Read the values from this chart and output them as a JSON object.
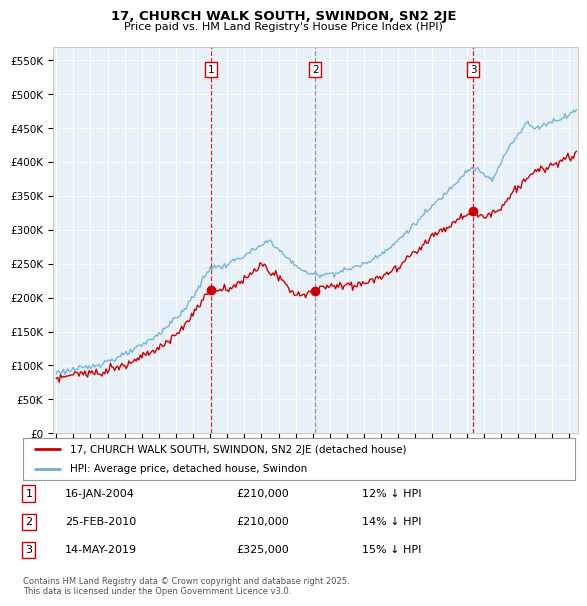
{
  "title": "17, CHURCH WALK SOUTH, SWINDON, SN2 2JE",
  "subtitle": "Price paid vs. HM Land Registry's House Price Index (HPI)",
  "ylabel_ticks": [
    "£0",
    "£50K",
    "£100K",
    "£150K",
    "£200K",
    "£250K",
    "£300K",
    "£350K",
    "£400K",
    "£450K",
    "£500K",
    "£550K"
  ],
  "ytick_values": [
    0,
    50000,
    100000,
    150000,
    200000,
    250000,
    300000,
    350000,
    400000,
    450000,
    500000,
    550000
  ],
  "ylim": [
    0,
    570000
  ],
  "plot_bg_color": "#e8f0f8",
  "hpi_color": "#6baed6",
  "price_color": "#cc0000",
  "sale_colors": [
    "#cc0000",
    "#888888",
    "#cc0000"
  ],
  "transactions": [
    {
      "date_num": 2004.04,
      "price": 210000,
      "label": "1"
    },
    {
      "date_num": 2010.15,
      "price": 210000,
      "label": "2"
    },
    {
      "date_num": 2019.37,
      "price": 325000,
      "label": "3"
    }
  ],
  "legend_entry1": "17, CHURCH WALK SOUTH, SWINDON, SN2 2JE (detached house)",
  "legend_entry2": "HPI: Average price, detached house, Swindon",
  "table_rows": [
    {
      "num": "1",
      "date": "16-JAN-2004",
      "price": "£210,000",
      "hpi": "12% ↓ HPI"
    },
    {
      "num": "2",
      "date": "25-FEB-2010",
      "price": "£210,000",
      "hpi": "14% ↓ HPI"
    },
    {
      "num": "3",
      "date": "14-MAY-2019",
      "price": "£325,000",
      "hpi": "15% ↓ HPI"
    }
  ],
  "footer": "Contains HM Land Registry data © Crown copyright and database right 2025.\nThis data is licensed under the Open Government Licence v3.0.",
  "xmin": 1994.8,
  "xmax": 2025.5
}
